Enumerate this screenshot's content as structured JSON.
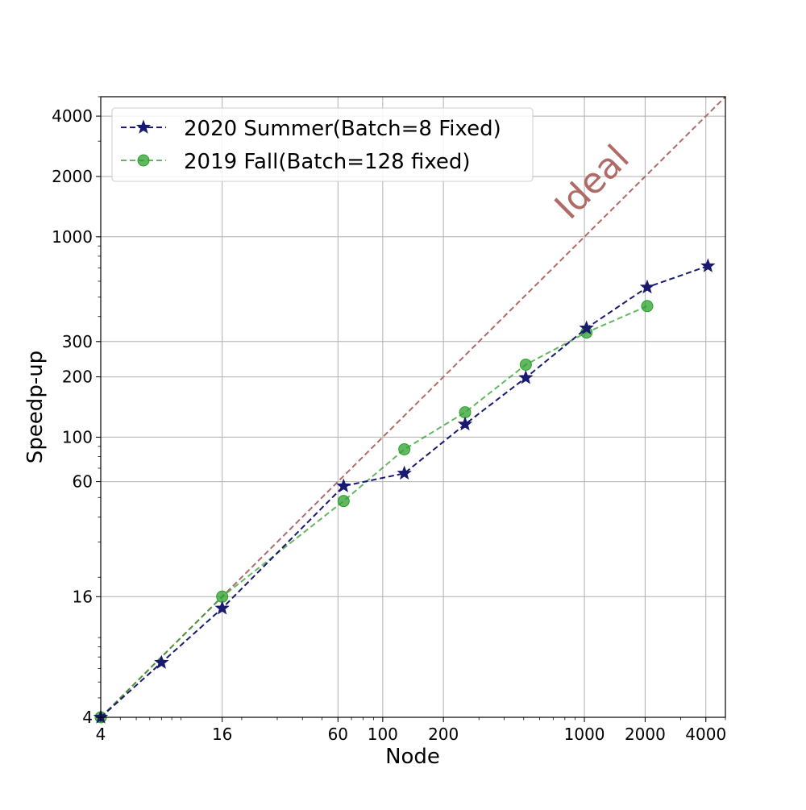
{
  "chart_data": {
    "type": "line",
    "title": "",
    "xlabel": "Node",
    "ylabel": "Speedp-up",
    "x_scale": "log",
    "y_scale": "log",
    "xlim": [
      4,
      5000
    ],
    "ylim": [
      4,
      5000
    ],
    "x_ticks": [
      4,
      16,
      60,
      100,
      200,
      1000,
      2000,
      4000
    ],
    "y_ticks": [
      4,
      16,
      60,
      100,
      200,
      300,
      1000,
      2000,
      4000
    ],
    "grid": true,
    "legend_position": "top-left",
    "series": [
      {
        "name": "2020 Summer(Batch=8 Fixed)",
        "color": "#191970",
        "line_style": "dashed",
        "marker": "star",
        "x": [
          4,
          8,
          16,
          64,
          128,
          256,
          512,
          1024,
          2048,
          4096
        ],
        "y": [
          4,
          7.5,
          14,
          57,
          66,
          116,
          198,
          350,
          560,
          715
        ]
      },
      {
        "name": "2019 Fall(Batch=128 fixed)",
        "color": "#2ca02c",
        "line_style": "dashed",
        "marker": "circle",
        "x": [
          4,
          16,
          64,
          128,
          256,
          512,
          1024,
          2048
        ],
        "y": [
          4,
          16,
          48,
          87,
          133,
          230,
          333,
          451
        ]
      }
    ],
    "reference_line": {
      "label": "Ideal",
      "color": "#b06b66",
      "x": [
        4,
        5000
      ],
      "y": [
        4,
        5000
      ]
    }
  }
}
